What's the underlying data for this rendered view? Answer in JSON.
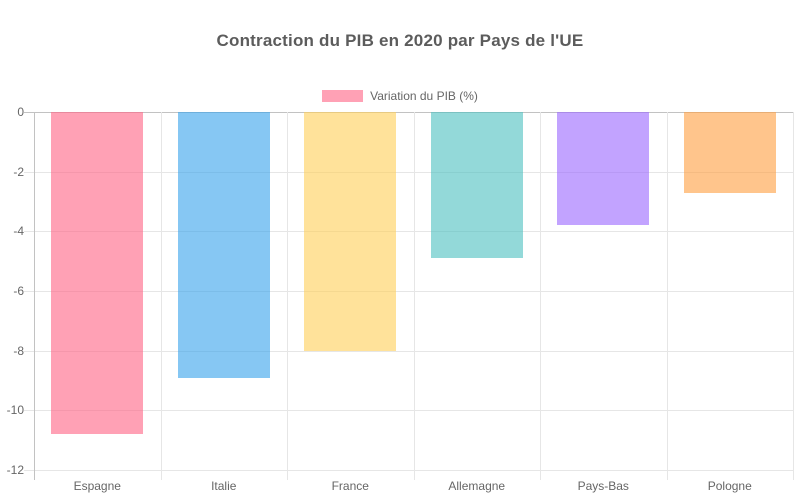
{
  "page": {
    "background": "#ffffff"
  },
  "chart_data": {
    "type": "bar",
    "title": "Contraction du PIB en 2020 par Pays de l'UE",
    "legend": {
      "position": "top",
      "entries": [
        {
          "label": "Variation du PIB (%)",
          "color": "rgba(255,99,132,0.6)"
        }
      ]
    },
    "categories": [
      "Espagne",
      "Italie",
      "France",
      "Allemagne",
      "Pays-Bas",
      "Pologne"
    ],
    "series": [
      {
        "name": "Variation du PIB (%)",
        "values": [
          -10.8,
          -8.9,
          -8.0,
          -4.9,
          -3.8,
          -2.7
        ]
      }
    ],
    "bar_colors": [
      "rgba(255,99,132,0.6)",
      "rgba(54,162,235,0.6)",
      "rgba(255,206,86,0.6)",
      "rgba(75,192,192,0.6)",
      "rgba(153,102,255,0.6)",
      "rgba(255,159,64,0.6)"
    ],
    "xlabel": "",
    "ylabel": "",
    "ylim": [
      -12,
      0
    ],
    "ytick_step": 2,
    "ytick_labels": [
      "0",
      "-2",
      "-4",
      "-6",
      "-8",
      "-10",
      "-12"
    ],
    "grid": true,
    "colors": {
      "grid_line": "#e6e6e6",
      "zero_line": "#c2c2c2",
      "tick_text": "#666666",
      "title_text": "#5c5c5c",
      "background": "#ffffff"
    }
  }
}
